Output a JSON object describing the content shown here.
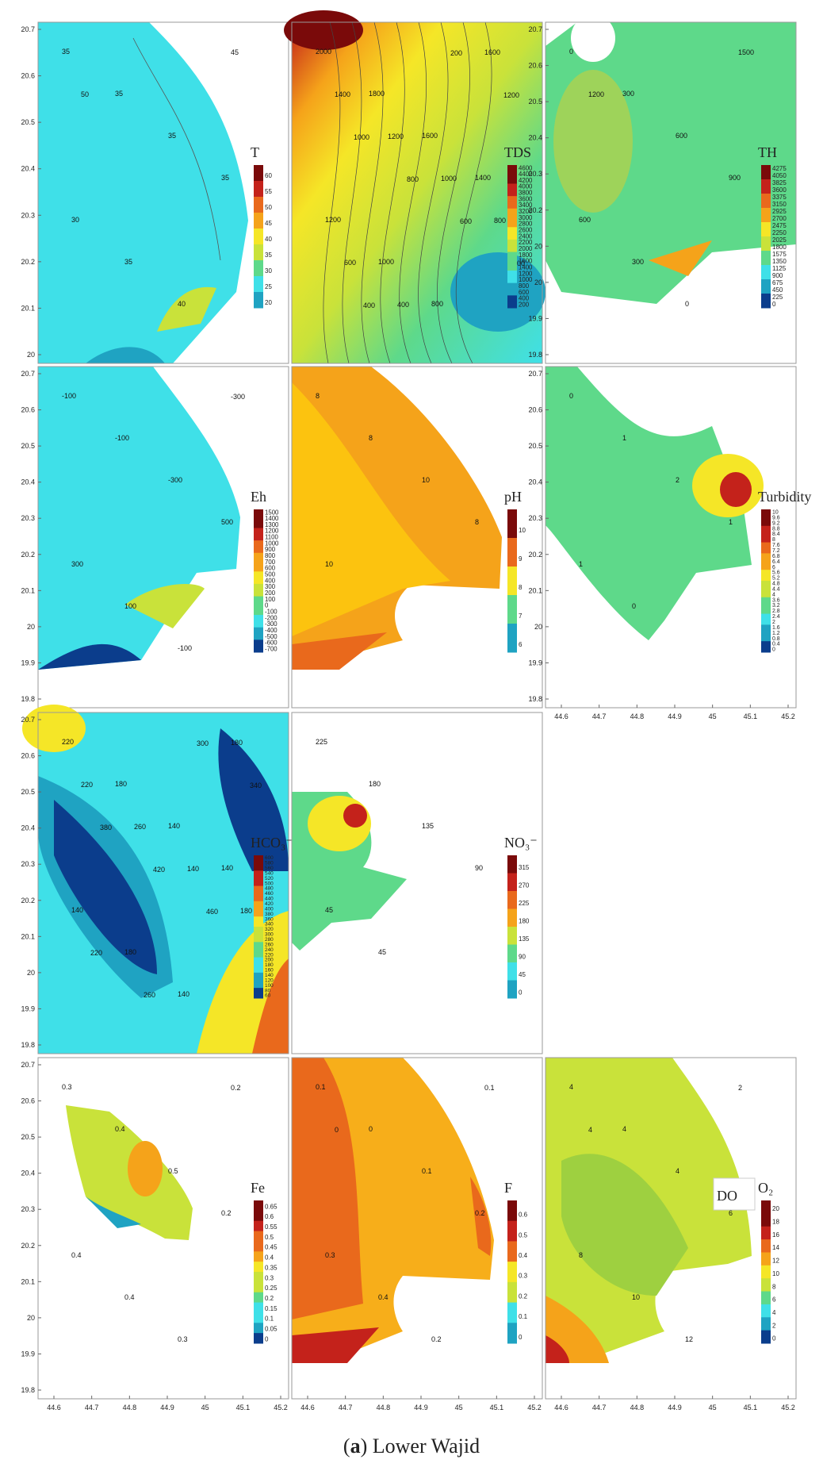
{
  "figure": {
    "caption_letter": "a",
    "caption_text": "Lower Wajid",
    "colors": {
      "cyan": "#3fe0e8",
      "teal": "#1fa3c2",
      "darkblue": "#0b3d8c",
      "green": "#5ed98a",
      "lime": "#c9e23a",
      "yellow": "#f5e627",
      "orange": "#f5a31a",
      "darkorange": "#e9691c",
      "red": "#c4221b",
      "darkred": "#7a0a0a"
    }
  },
  "chart_data": [
    {
      "type": "heatmap",
      "title": "T",
      "row": 0,
      "col": 0,
      "legend_ticks": [
        "60",
        "55",
        "50",
        "45",
        "40",
        "35",
        "30",
        "25",
        "20"
      ],
      "contour_labels": [
        "35",
        "35",
        "35",
        "35",
        "30",
        "35",
        "40",
        "45",
        "50"
      ],
      "y_ticks": [
        "20.7",
        "20.6",
        "20.5",
        "20.4",
        "20.3",
        "20.2",
        "20.1",
        "20"
      ]
    },
    {
      "type": "heatmap",
      "title": "TDS",
      "row": 0,
      "col": 1,
      "legend_ticks": [
        "4600",
        "4400",
        "4200",
        "4000",
        "3800",
        "3600",
        "3400",
        "3200",
        "3000",
        "2800",
        "2600",
        "2400",
        "2200",
        "2000",
        "1800",
        "1600",
        "1400",
        "1200",
        "1000",
        "800",
        "600",
        "400",
        "200"
      ],
      "contour_labels": [
        "2000",
        "1800",
        "1600",
        "1400",
        "1200",
        "1000",
        "800",
        "1600",
        "1400",
        "1200",
        "1000",
        "800",
        "600",
        "400",
        "200",
        "1200",
        "1000",
        "800",
        "600",
        "200",
        "400"
      ]
    },
    {
      "type": "heatmap",
      "title": "TH",
      "row": 0,
      "col": 2,
      "legend_ticks": [
        "4275",
        "4050",
        "3825",
        "3600",
        "3375",
        "3150",
        "2925",
        "2700",
        "2475",
        "2250",
        "2025",
        "1800",
        "1575",
        "1350",
        "1125",
        "900",
        "675",
        "450",
        "225",
        "0"
      ],
      "contour_labels": [
        "0",
        "300",
        "600",
        "900",
        "600",
        "300",
        "0",
        "1500",
        "1200"
      ],
      "y_ticks": [
        "20.7",
        "20.6",
        "20.5",
        "20.4",
        "20.3",
        "20.2",
        "20",
        "20",
        "19.9",
        "19.8"
      ]
    },
    {
      "type": "heatmap",
      "title": "Eh",
      "row": 1,
      "col": 0,
      "legend_ticks": [
        "1500",
        "1400",
        "1300",
        "1200",
        "1100",
        "1000",
        "900",
        "800",
        "700",
        "600",
        "500",
        "400",
        "300",
        "200",
        "100",
        "0",
        "-100",
        "-200",
        "-300",
        "-400",
        "-500",
        "-600",
        "-700"
      ],
      "contour_labels": [
        "-100",
        "-100",
        "-300",
        "500",
        "300",
        "100",
        "-100",
        "-300"
      ],
      "y_ticks": [
        "20.7",
        "20.6",
        "20.5",
        "20.4",
        "20.3",
        "20.2",
        "20.1",
        "20",
        "19.9",
        "19.8"
      ]
    },
    {
      "type": "heatmap",
      "title": "pH",
      "row": 1,
      "col": 1,
      "legend_ticks": [
        "10",
        "9",
        "8",
        "7",
        "6"
      ],
      "contour_labels": [
        "8",
        "8",
        "10",
        "8",
        "10"
      ]
    },
    {
      "type": "heatmap",
      "title": "Turbidity",
      "row": 1,
      "col": 2,
      "legend_ticks": [
        "10",
        "9.6",
        "9.2",
        "8.8",
        "8.4",
        "8",
        "7.6",
        "7.2",
        "6.8",
        "6.4",
        "6",
        "5.6",
        "5.2",
        "4.8",
        "4.4",
        "4",
        "3.6",
        "3.2",
        "2.8",
        "2.4",
        "2",
        "1.6",
        "1.2",
        "0.8",
        "0.4",
        "0"
      ],
      "contour_labels": [
        "0",
        "1",
        "2",
        "1",
        "1",
        "0"
      ],
      "y_ticks": [
        "20.7",
        "20.6",
        "20.5",
        "20.4",
        "20.3",
        "20.2",
        "20.1",
        "20",
        "19.9",
        "19.8"
      ],
      "x_ticks": [
        "44.6",
        "44.7",
        "44.8",
        "44.9",
        "45",
        "45.1",
        "45.2"
      ]
    },
    {
      "type": "heatmap",
      "title": "HCO₃⁻",
      "row": 2,
      "col": 0,
      "legend_ticks": [
        "600",
        "580",
        "560",
        "540",
        "520",
        "500",
        "480",
        "460",
        "440",
        "420",
        "400",
        "380",
        "360",
        "340",
        "320",
        "300",
        "280",
        "260",
        "240",
        "220",
        "200",
        "180",
        "160",
        "140",
        "120",
        "100",
        "80",
        "60"
      ],
      "contour_labels": [
        "220",
        "180",
        "140",
        "140",
        "140",
        "180",
        "140",
        "180",
        "220",
        "260",
        "140",
        "180",
        "220",
        "260",
        "300",
        "340",
        "380",
        "420",
        "460"
      ],
      "y_ticks": [
        "20.7",
        "20.6",
        "20.5",
        "20.4",
        "20.3",
        "20.2",
        "20.1",
        "20",
        "19.9",
        "19.8"
      ]
    },
    {
      "type": "heatmap",
      "title": "NO₃⁻",
      "row": 2,
      "col": 1,
      "legend_ticks": [
        "315",
        "270",
        "225",
        "180",
        "135",
        "90",
        "45",
        "0"
      ],
      "contour_labels": [
        "225",
        "180",
        "135",
        "90",
        "45",
        "45"
      ]
    },
    {
      "type": "heatmap",
      "title": "Fe",
      "row": 3,
      "col": 0,
      "legend_ticks": [
        "0.65",
        "0.6",
        "0.55",
        "0.5",
        "0.45",
        "0.4",
        "0.35",
        "0.3",
        "0.25",
        "0.2",
        "0.15",
        "0.1",
        "0.05",
        "0"
      ],
      "contour_labels": [
        "0.3",
        "0.4",
        "0.5",
        "0.2",
        "0.4",
        "0.4",
        "0.3",
        "0.2"
      ],
      "y_ticks": [
        "20.7",
        "20.6",
        "20.5",
        "20.4",
        "20.3",
        "20.2",
        "20.1",
        "20",
        "19.9",
        "19.8"
      ],
      "x_ticks": [
        "44.6",
        "44.7",
        "44.8",
        "44.9",
        "45",
        "45.1",
        "45.2"
      ]
    },
    {
      "type": "heatmap",
      "title": "F",
      "row": 3,
      "col": 1,
      "legend_ticks": [
        "0.6",
        "0.5",
        "0.4",
        "0.3",
        "0.2",
        "0.1",
        "0"
      ],
      "contour_labels": [
        "0.1",
        "0",
        "0.1",
        "0.2",
        "0.3",
        "0.4",
        "0.2",
        "0.1",
        "0"
      ],
      "x_ticks": [
        "44.6",
        "44.7",
        "44.8",
        "44.9",
        "45",
        "45.1",
        "45.2"
      ]
    },
    {
      "type": "heatmap",
      "title": "O₂",
      "extra_label": "DO",
      "row": 3,
      "col": 2,
      "legend_ticks": [
        "20",
        "18",
        "16",
        "14",
        "12",
        "10",
        "8",
        "6",
        "4",
        "2",
        "0"
      ],
      "contour_labels": [
        "4",
        "4",
        "4",
        "6",
        "8",
        "10",
        "12",
        "2",
        "4"
      ],
      "x_ticks": [
        "44.6",
        "44.7",
        "44.8",
        "44.9",
        "45",
        "45.1",
        "45.2"
      ]
    }
  ]
}
